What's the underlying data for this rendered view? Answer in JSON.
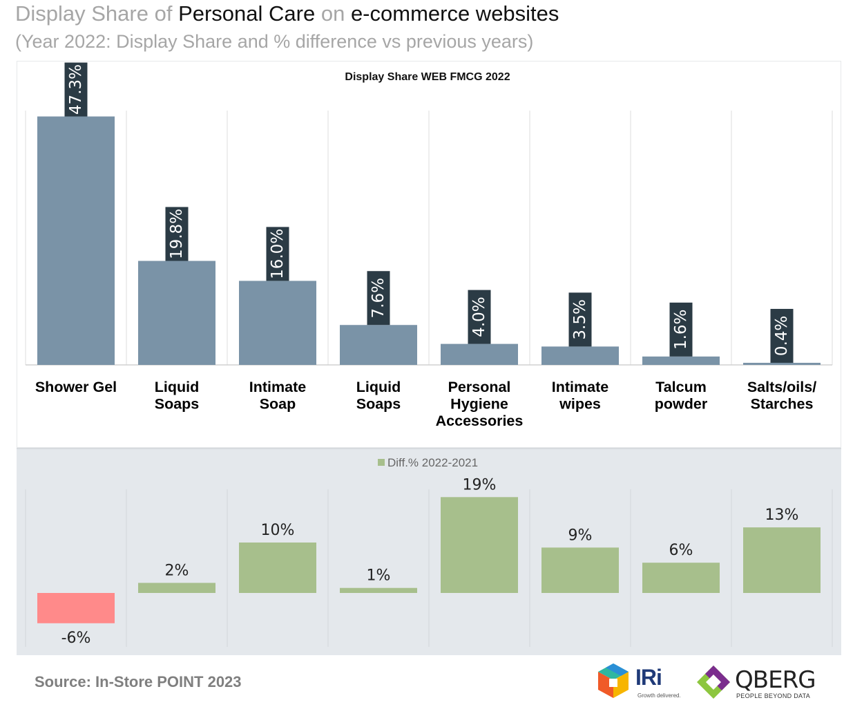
{
  "header": {
    "title_parts": [
      {
        "text": "Display Share of ",
        "tone": "light"
      },
      {
        "text": "Personal Care",
        "tone": "dark"
      },
      {
        "text": " on ",
        "tone": "light"
      },
      {
        "text": "e-commerce websites",
        "tone": "dark"
      }
    ],
    "subtitle": "(Year 2022: Display Share and % difference vs previous years)"
  },
  "chart_data": [
    {
      "type": "bar",
      "title": "Display Share WEB FMCG 2022",
      "categories": [
        [
          "Shower Gel"
        ],
        [
          "Liquid",
          "Soaps"
        ],
        [
          "Intimate",
          "Soap"
        ],
        [
          "Liquid",
          "Soaps"
        ],
        [
          "Personal",
          "Hygiene",
          "Accessories"
        ],
        [
          "Intimate",
          "wipes"
        ],
        [
          "Talcum",
          "powder"
        ],
        [
          "Salts/oils/",
          "Starches"
        ]
      ],
      "values": [
        47.3,
        19.8,
        16.0,
        7.6,
        4.0,
        3.5,
        1.6,
        0.4
      ],
      "data_labels": [
        "47.3%",
        "19.8%",
        "16.0%",
        "7.6%",
        "4.0%",
        "3.5%",
        "1.6%",
        "0.4%"
      ],
      "unit": "%",
      "ylim": [
        0,
        50
      ],
      "grid": false,
      "bar_color": "#7a93a7",
      "label_bg_color": "#2b3b45"
    },
    {
      "type": "bar",
      "legend": "Diff.% 2022-2021",
      "legend_position": "top-center",
      "values": [
        -6,
        2,
        10,
        1,
        19,
        9,
        6,
        13
      ],
      "data_labels": [
        "-6%",
        "2%",
        "10%",
        "1%",
        "19%",
        "9%",
        "6%",
        "13%"
      ],
      "unit": "%",
      "ylim": [
        -8,
        20
      ],
      "positive_color": "#a7bf8c",
      "negative_color": "#ff8a8a"
    }
  ],
  "footer": {
    "source": "Source: In-Store POINT 2023",
    "iri_logo": {
      "name": "IRi",
      "tagline": "Growth delivered."
    },
    "qberg_logo": {
      "name": "QBERG",
      "tagline": "PEOPLE BEYOND DATA"
    }
  },
  "colors": {
    "title_light": "#a6a6a6",
    "title_dark": "#111111",
    "bottom_panel_bg": "#e4e8ec",
    "divider": "#dcdcdc"
  }
}
